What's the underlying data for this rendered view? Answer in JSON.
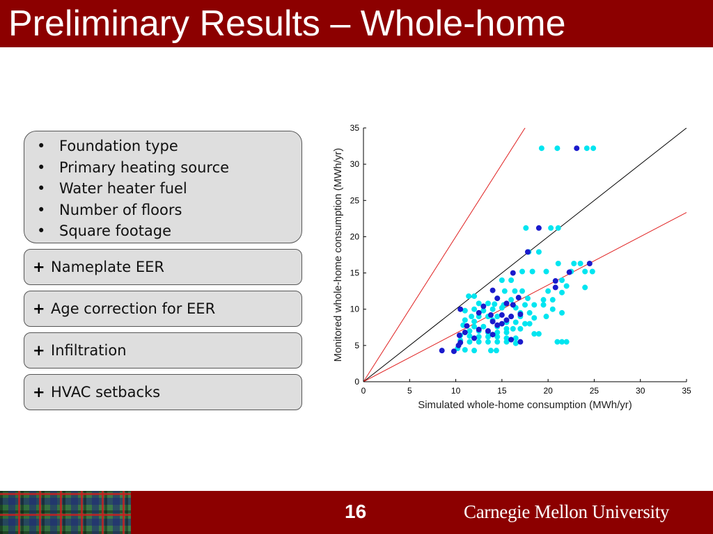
{
  "slide": {
    "title": "Preliminary Results – Whole-home",
    "page_number": "16",
    "brand": "Carnegie Mellon University"
  },
  "factors": {
    "base_list": [
      "Foundation type",
      "Primary heating source",
      "Water heater fuel",
      "Number of floors",
      "Square footage"
    ],
    "bullet_symbol": "•",
    "plus_symbol": "+",
    "additions": [
      "Nameplate EER",
      "Age correction for EER",
      "Infiltration",
      "HVAC setbacks"
    ]
  },
  "colors": {
    "title_bar": "#8c0000",
    "box_fill": "#dedede",
    "series_light": "#00e5f0",
    "series_dark": "#1a1acc",
    "ref_line": "#000000",
    "bound_line": "#e02020"
  },
  "chart_data": {
    "type": "scatter",
    "title": "",
    "xlabel": "Simulated whole-home consumption (MWh/yr)",
    "ylabel": "Monitored whole-home consumption (MWh/yr)",
    "xlim": [
      0,
      35
    ],
    "ylim": [
      0,
      35
    ],
    "xticks": [
      0,
      5,
      10,
      15,
      20,
      25,
      30,
      35
    ],
    "yticks": [
      0,
      5,
      10,
      15,
      20,
      25,
      30,
      35
    ],
    "grid": false,
    "lines": [
      {
        "slope": 1.0,
        "color": "black"
      },
      {
        "slope": 2.0,
        "color": "red"
      },
      {
        "slope": 0.667,
        "color": "red"
      }
    ],
    "series": [
      {
        "color": "cyan",
        "points": [
          [
            19.3,
            32.2
          ],
          [
            21.0,
            32.2
          ],
          [
            24.2,
            32.2
          ],
          [
            24.9,
            32.2
          ],
          [
            17.6,
            21.2
          ],
          [
            20.3,
            21.2
          ],
          [
            21.1,
            21.2
          ],
          [
            17.9,
            17.9
          ],
          [
            19.0,
            17.9
          ],
          [
            18.3,
            15.2
          ],
          [
            17.2,
            15.2
          ],
          [
            19.8,
            15.2
          ],
          [
            22.5,
            15.2
          ],
          [
            24.0,
            15.2
          ],
          [
            24.8,
            15.2
          ],
          [
            21.1,
            16.3
          ],
          [
            22.8,
            16.3
          ],
          [
            23.5,
            16.3
          ],
          [
            15.0,
            14.0
          ],
          [
            16.0,
            14.0
          ],
          [
            21.5,
            14.0
          ],
          [
            24.0,
            13.0
          ],
          [
            22.0,
            13.2
          ],
          [
            15.3,
            12.5
          ],
          [
            16.4,
            12.5
          ],
          [
            17.2,
            12.5
          ],
          [
            20.0,
            12.5
          ],
          [
            21.5,
            12.3
          ],
          [
            11.4,
            11.8
          ],
          [
            12.0,
            11.8
          ],
          [
            14.5,
            11.5
          ],
          [
            16.0,
            11.3
          ],
          [
            17.8,
            11.5
          ],
          [
            19.5,
            11.3
          ],
          [
            20.5,
            11.3
          ],
          [
            12.5,
            10.8
          ],
          [
            13.5,
            10.8
          ],
          [
            14.2,
            10.7
          ],
          [
            15.2,
            10.6
          ],
          [
            16.2,
            10.6
          ],
          [
            17.5,
            10.6
          ],
          [
            18.5,
            10.6
          ],
          [
            19.5,
            10.6
          ],
          [
            11.0,
            9.8
          ],
          [
            12.0,
            10.0
          ],
          [
            13.0,
            9.8
          ],
          [
            14.0,
            10.0
          ],
          [
            15.0,
            10.2
          ],
          [
            16.5,
            10.2
          ],
          [
            17.0,
            9.5
          ],
          [
            18.0,
            9.5
          ],
          [
            20.5,
            10.0
          ],
          [
            21.5,
            9.5
          ],
          [
            11.7,
            9.0
          ],
          [
            12.5,
            9.0
          ],
          [
            13.5,
            9.0
          ],
          [
            14.5,
            9.0
          ],
          [
            16.0,
            9.0
          ],
          [
            17.0,
            9.0
          ],
          [
            18.5,
            8.8
          ],
          [
            19.8,
            9.0
          ],
          [
            11.0,
            8.5
          ],
          [
            12.0,
            8.3
          ],
          [
            14.0,
            8.5
          ],
          [
            15.5,
            8.2
          ],
          [
            16.5,
            8.2
          ],
          [
            17.5,
            8.0
          ],
          [
            18.0,
            8.0
          ],
          [
            10.8,
            7.8
          ],
          [
            12.0,
            7.6
          ],
          [
            13.0,
            7.6
          ],
          [
            14.5,
            7.6
          ],
          [
            15.5,
            7.3
          ],
          [
            16.2,
            7.3
          ],
          [
            17.0,
            7.3
          ],
          [
            11.5,
            7.0
          ],
          [
            12.5,
            7.0
          ],
          [
            13.5,
            6.8
          ],
          [
            14.5,
            6.8
          ],
          [
            15.5,
            6.8
          ],
          [
            18.5,
            6.6
          ],
          [
            19.0,
            6.6
          ],
          [
            10.5,
            6.4
          ],
          [
            11.5,
            6.3
          ],
          [
            12.5,
            6.2
          ],
          [
            13.5,
            6.2
          ],
          [
            14.5,
            6.2
          ],
          [
            15.5,
            6.0
          ],
          [
            16.5,
            6.0
          ],
          [
            10.5,
            5.7
          ],
          [
            11.5,
            5.5
          ],
          [
            12.5,
            5.5
          ],
          [
            13.5,
            5.5
          ],
          [
            14.5,
            5.5
          ],
          [
            15.5,
            5.5
          ],
          [
            16.5,
            5.3
          ],
          [
            21.0,
            5.5
          ],
          [
            21.5,
            5.5
          ],
          [
            22.0,
            5.5
          ],
          [
            10.2,
            4.6
          ],
          [
            11.0,
            4.4
          ],
          [
            12.0,
            4.3
          ],
          [
            13.8,
            4.3
          ],
          [
            14.4,
            4.3
          ]
        ]
      },
      {
        "color": "blue",
        "points": [
          [
            23.1,
            32.2
          ],
          [
            19.0,
            21.2
          ],
          [
            17.8,
            17.9
          ],
          [
            16.2,
            15.0
          ],
          [
            24.5,
            16.3
          ],
          [
            20.8,
            13.9
          ],
          [
            22.3,
            15.1
          ],
          [
            14.0,
            12.6
          ],
          [
            20.8,
            13.0
          ],
          [
            16.8,
            11.6
          ],
          [
            14.5,
            11.5
          ],
          [
            15.5,
            10.8
          ],
          [
            16.2,
            10.6
          ],
          [
            13.0,
            10.4
          ],
          [
            10.5,
            10.0
          ],
          [
            12.5,
            9.5
          ],
          [
            13.8,
            9.2
          ],
          [
            15.0,
            9.2
          ],
          [
            16.0,
            9.0
          ],
          [
            17.0,
            9.3
          ],
          [
            15.5,
            8.5
          ],
          [
            14.0,
            8.3
          ],
          [
            15.0,
            8.0
          ],
          [
            14.5,
            7.8
          ],
          [
            11.2,
            7.7
          ],
          [
            12.5,
            7.2
          ],
          [
            13.5,
            7.0
          ],
          [
            14.0,
            6.5
          ],
          [
            11.0,
            6.8
          ],
          [
            10.4,
            6.4
          ],
          [
            12.0,
            6.0
          ],
          [
            16.0,
            5.8
          ],
          [
            17.0,
            5.5
          ],
          [
            10.5,
            5.4
          ],
          [
            10.3,
            5.0
          ],
          [
            8.5,
            4.3
          ],
          [
            9.8,
            4.2
          ]
        ]
      }
    ]
  }
}
